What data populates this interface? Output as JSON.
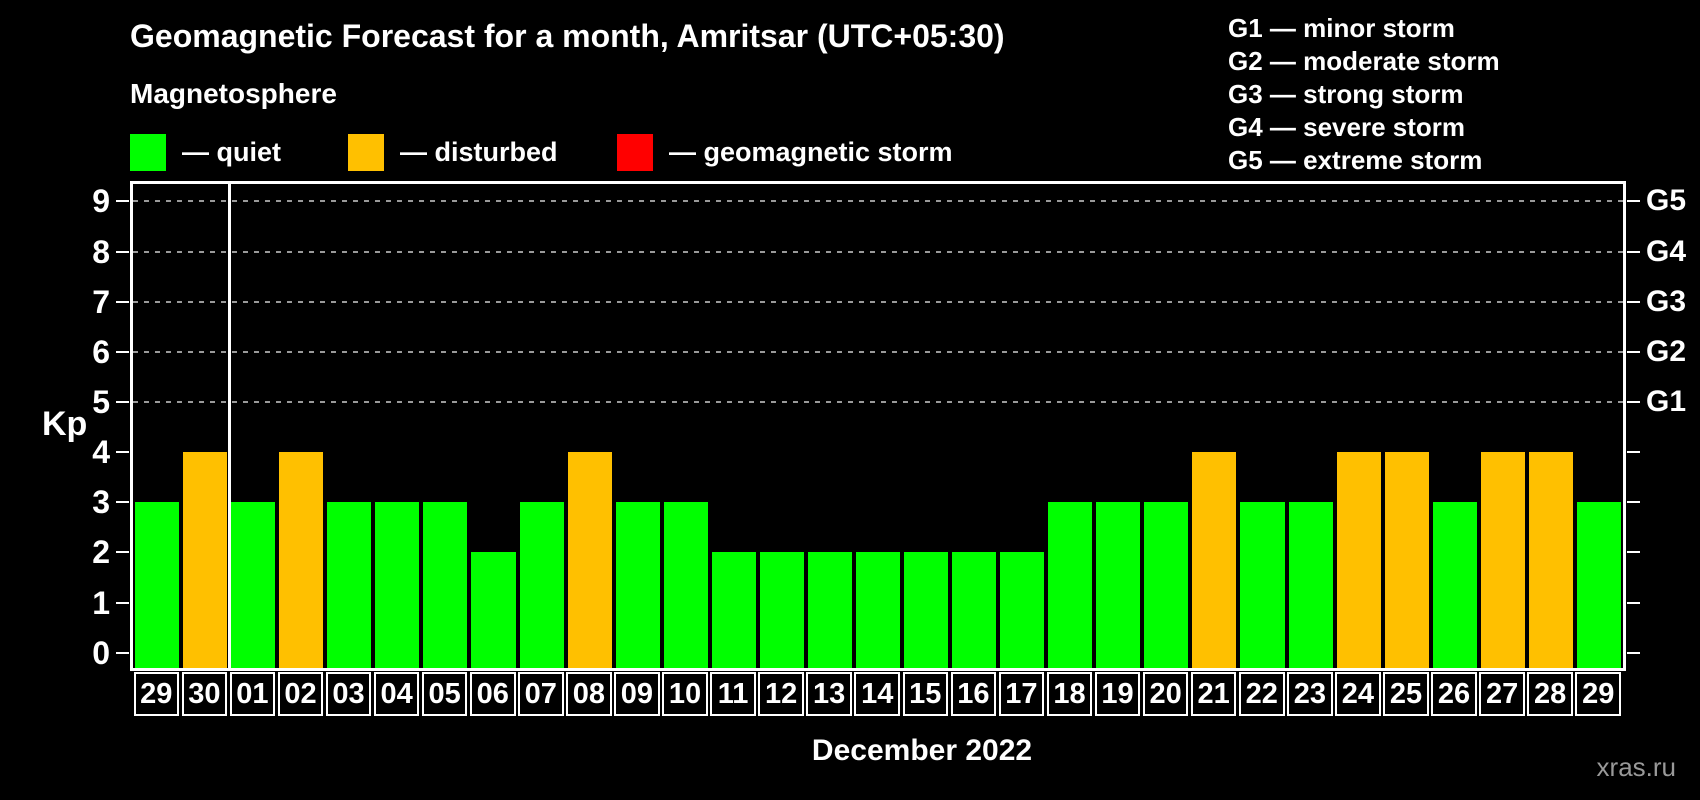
{
  "title": "Geomagnetic Forecast for a month, Amritsar (UTC+05:30)",
  "subtitle": "Magnetosphere",
  "legend": {
    "items": [
      {
        "key": "quiet",
        "label": "— quiet",
        "color": "#00ff00"
      },
      {
        "key": "disturbed",
        "label": "— disturbed",
        "color": "#ffc000"
      },
      {
        "key": "storm",
        "label": "— geomagnetic storm",
        "color": "#ff0000"
      }
    ]
  },
  "g_legend": [
    "G1 — minor storm",
    "G2 — moderate storm",
    "G3 — strong storm",
    "G4 — severe storm",
    "G5 — extreme storm"
  ],
  "watermark": "xras.ru",
  "colors": {
    "quiet": "#00ff00",
    "disturbed": "#ffc000",
    "storm": "#ff0000",
    "grid": "#9a9a9a",
    "axis": "#ffffff",
    "background": "#000000",
    "watermark": "#999999"
  },
  "chart_data": {
    "type": "bar",
    "title": "Geomagnetic Forecast for a month, Amritsar (UTC+05:30)",
    "xlabel": "December 2022",
    "ylabel": "Kp",
    "ylim": [
      0,
      9
    ],
    "y_ticks": [
      0,
      1,
      2,
      3,
      4,
      5,
      6,
      7,
      8,
      9
    ],
    "gridlines_at": [
      5,
      6,
      7,
      8,
      9
    ],
    "grid": "dashed-horizontal-on-storm-levels-only",
    "right_axis_labels": [
      {
        "label": "G1",
        "kp": 5
      },
      {
        "label": "G2",
        "kp": 6
      },
      {
        "label": "G3",
        "kp": 7
      },
      {
        "label": "G4",
        "kp": 8
      },
      {
        "label": "G5",
        "kp": 9
      }
    ],
    "month_separator_after_index": 1,
    "legend_position": "top-left",
    "categories": [
      "29",
      "30",
      "01",
      "02",
      "03",
      "04",
      "05",
      "06",
      "07",
      "08",
      "09",
      "10",
      "11",
      "12",
      "13",
      "14",
      "15",
      "16",
      "17",
      "18",
      "19",
      "20",
      "21",
      "22",
      "23",
      "24",
      "25",
      "26",
      "27",
      "28",
      "29"
    ],
    "values": [
      3,
      4,
      3,
      4,
      3,
      3,
      3,
      2,
      3,
      4,
      3,
      3,
      2,
      2,
      2,
      2,
      2,
      2,
      2,
      3,
      3,
      3,
      4,
      3,
      3,
      4,
      4,
      3,
      4,
      4,
      3
    ],
    "statuses": [
      "quiet",
      "disturbed",
      "quiet",
      "disturbed",
      "quiet",
      "quiet",
      "quiet",
      "quiet",
      "quiet",
      "disturbed",
      "quiet",
      "quiet",
      "quiet",
      "quiet",
      "quiet",
      "quiet",
      "quiet",
      "quiet",
      "quiet",
      "quiet",
      "quiet",
      "quiet",
      "disturbed",
      "quiet",
      "quiet",
      "disturbed",
      "disturbed",
      "quiet",
      "disturbed",
      "disturbed",
      "quiet"
    ]
  }
}
